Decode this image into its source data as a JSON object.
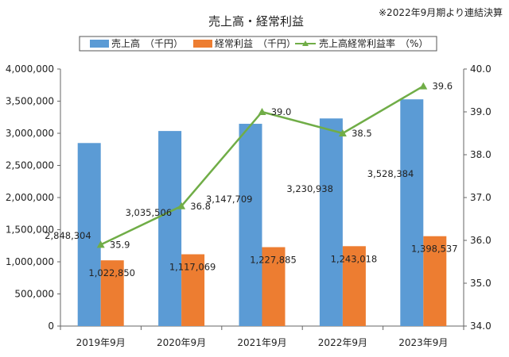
{
  "chart_data": {
    "type": "bar",
    "title": "売上高・経常利益",
    "note": "※2022年9月期より連結決算",
    "categories": [
      "2019年9月",
      "2020年9月",
      "2021年9月",
      "2022年9月",
      "2023年9月"
    ],
    "series": [
      {
        "name": "売上高　（千円）",
        "type": "bar",
        "axis": "left",
        "color": "#5b9bd5",
        "values": [
          2848304,
          3035506,
          3147709,
          3230938,
          3528384
        ],
        "labels": [
          "2,848,304",
          "3,035,506",
          "3,147,709",
          "3,230,938",
          "3,528,384"
        ]
      },
      {
        "name": "経常利益　（千円）",
        "type": "bar",
        "axis": "left",
        "color": "#ed7d31",
        "values": [
          1022850,
          1117069,
          1227885,
          1243018,
          1398537
        ],
        "labels": [
          "1,022,850",
          "1,117,069",
          "1,227,885",
          "1,243,018",
          "1,398,537"
        ]
      },
      {
        "name": "売上高経常利益率　（%）",
        "type": "line",
        "axis": "right",
        "color": "#70ad47",
        "marker": "triangle",
        "values": [
          35.9,
          36.8,
          39.0,
          38.5,
          39.6
        ],
        "labels": [
          "35.9",
          "36.8",
          "39.0",
          "38.5",
          "39.6"
        ]
      }
    ],
    "y_left": {
      "min": 0,
      "max": 4000000,
      "ticks": [
        0,
        500000,
        1000000,
        1500000,
        2000000,
        2500000,
        3000000,
        3500000,
        4000000
      ],
      "tick_labels": [
        "0",
        "500,000",
        "1,000,000",
        "1,500,000",
        "2,000,000",
        "2,500,000",
        "3,000,000",
        "3,500,000",
        "4,000,000"
      ]
    },
    "y_right": {
      "min": 34.0,
      "max": 40.0,
      "ticks": [
        34,
        35,
        36,
        37,
        38,
        39,
        40
      ],
      "tick_labels": [
        "34.0",
        "35.0",
        "36.0",
        "37.0",
        "38.0",
        "39.0",
        "40.0"
      ]
    },
    "grid": false,
    "legend_position": "top"
  }
}
